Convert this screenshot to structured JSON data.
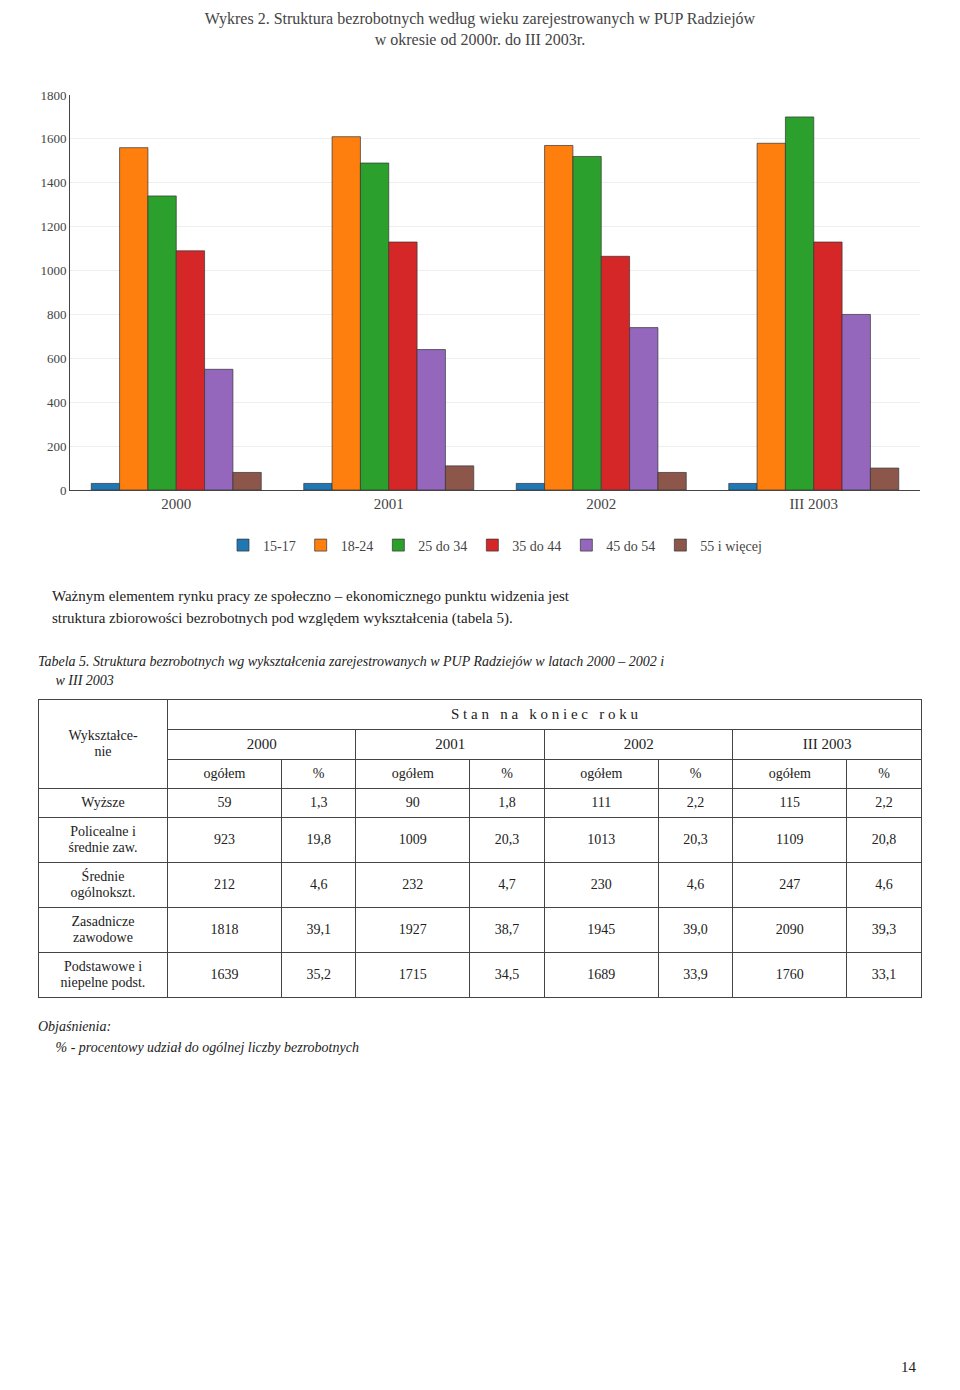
{
  "chart_data": {
    "type": "bar",
    "title": "Wykres 2. Struktura bezrobotnych według wieku zarejestrowanych w PUP Radziejów",
    "subtitle": "w okresie od 2000r. do III 2003r.",
    "categories": [
      "2000",
      "2001",
      "2002",
      "III 2003"
    ],
    "series": [
      {
        "name": "15-17",
        "values": [
          30,
          30,
          30,
          30
        ]
      },
      {
        "name": "18-24",
        "values": [
          1560,
          1610,
          1570,
          1580
        ]
      },
      {
        "name": "25 do 34",
        "values": [
          1340,
          1490,
          1520,
          1700
        ]
      },
      {
        "name": "35 do 44",
        "values": [
          1090,
          1130,
          1065,
          1130
        ]
      },
      {
        "name": "45 do 54",
        "values": [
          550,
          640,
          740,
          800
        ]
      },
      {
        "name": "55 i więcej",
        "values": [
          80,
          110,
          80,
          100
        ]
      }
    ],
    "ylim": [
      0,
      1800
    ],
    "yticks": [
      0,
      200,
      400,
      600,
      800,
      1000,
      1200,
      1400,
      1600,
      1800
    ],
    "grid": true,
    "legend": "bottom"
  },
  "paragraph": [
    "Ważnym elementem rynku pracy ze społeczno – ekonomicznego punktu widzenia jest",
    "struktura zbiorowości bezrobotnych pod względem wykształcenia (tabela 5)."
  ],
  "table": {
    "caption": [
      "Tabela 5. Struktura bezrobotnych wg wykształcenia zarejestrowanych w PUP Radziejów w latach 2000 – 2002 i",
      "     w III 2003"
    ],
    "corner": [
      "Wykształce-",
      "nie"
    ],
    "header_top": "S t a n   n a   k o n i e c   r o k u",
    "years": [
      "2000",
      "2001",
      "2002",
      "III 2003"
    ],
    "col_headers": [
      "ogółem",
      "%",
      "ogółem",
      "%",
      "ogółem",
      "%",
      "ogółem",
      "%"
    ],
    "row_labels": [
      [
        "Wyższe"
      ],
      [
        "Policealne i",
        "średnie zaw."
      ],
      [
        "Średnie",
        "ogólnokszt."
      ],
      [
        "Zasadnicze",
        "zawodowe"
      ],
      [
        "Podstawowe i",
        "niepelne podst."
      ]
    ],
    "rows": [
      [
        59,
        "1,3",
        90,
        "1,8",
        111,
        "2,2",
        115,
        "2,2"
      ],
      [
        923,
        "19,8",
        1009,
        "20,3",
        1013,
        "20,3",
        1109,
        "20,8"
      ],
      [
        212,
        "4,6",
        232,
        "4,7",
        230,
        "4,6",
        247,
        "4,6"
      ],
      [
        1818,
        "39,1",
        1927,
        "38,7",
        1945,
        "39,0",
        2090,
        "39,3"
      ],
      [
        1639,
        "35,2",
        1715,
        "34,5",
        1689,
        "33,9",
        1760,
        "33,1"
      ]
    ]
  },
  "footnotes": [
    "Objaśnienia:",
    "     % - procentowy udział do ogólnej liczby bezrobotnych"
  ],
  "page_number": "14"
}
